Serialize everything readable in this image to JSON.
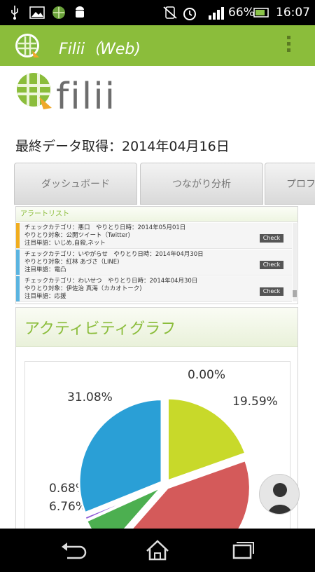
{
  "status_bar": {
    "battery_percent": "66%",
    "time": "16:07",
    "icons": [
      "usb-icon",
      "image-icon",
      "app-icon",
      "android-icon",
      "silent-icon",
      "alarm-icon",
      "signal-icon",
      "battery-icon"
    ]
  },
  "app_bar": {
    "title": "Filii（Web)",
    "menu_icon": "overflow-menu-icon",
    "color": "#8bbd3b"
  },
  "brand": {
    "logo_text": "filii"
  },
  "last_fetch": "最終データ取得：2014年04月16日",
  "tabs": [
    "ダッシュボード",
    "つながり分析",
    "プロフ"
  ],
  "alert_list": {
    "title": "アラートリスト",
    "items": [
      {
        "line1": "チェックカテゴリ：悪口　やりとり日時：2014年05月01日",
        "line2": "やりとり対象：公開ツイート（Twitter)",
        "line3": "注目単語：いじめ,自殺,ネット",
        "check_label": "Check",
        "color": "#f0ad1f"
      },
      {
        "line1": "チェックカテゴリ：いやがらせ　やりとり日時：2014年04月30日",
        "line2": "やりとり対象：紅林 あづさ（LINE)",
        "line3": "注目単語：電凸",
        "check_label": "Check",
        "color": "#5ab4e0"
      },
      {
        "line1": "チェックカテゴリ：わいせつ　やりとり日時：2014年04月30日",
        "line2": "やりとり対象：伊佐治 真海（カカオトーク)",
        "line3": "注目単語：応援",
        "check_label": "Check",
        "color": "#5ab4e0"
      }
    ]
  },
  "activity": {
    "title": "アクティビティグラフ"
  },
  "chart_data": {
    "type": "pie",
    "title": "",
    "slices": [
      {
        "label": "0.00%",
        "value": 0.0,
        "color": "#c8d92a"
      },
      {
        "label": "19.59%",
        "value": 19.59,
        "color": "#c8d92a"
      },
      {
        "label": "",
        "value": 41.89,
        "color": "#d45a5a"
      },
      {
        "label": "6.76%",
        "value": 6.76,
        "color": "#4caf50"
      },
      {
        "label": "0.68%",
        "value": 0.68,
        "color": "#8e5ad6"
      },
      {
        "label": "31.08%",
        "value": 31.08,
        "color": "#2a9fd6"
      }
    ]
  },
  "nav": {
    "back_icon": "back-icon",
    "home_icon": "home-icon",
    "recents_icon": "recents-icon"
  },
  "fab_icon": "person-icon"
}
